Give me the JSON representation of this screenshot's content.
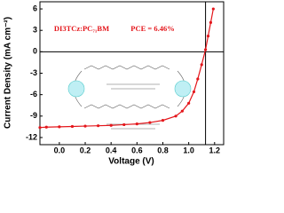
{
  "chart_data": {
    "type": "line",
    "annotations": [
      "DI3TCz:PC₇₁BM",
      "PCE = 6.46%"
    ],
    "x_label": "Voltage (V)",
    "y_label": "Current Density (mA cm⁻²)",
    "x": [
      -0.15,
      -0.1,
      0,
      0.1,
      0.2,
      0.3,
      0.4,
      0.5,
      0.6,
      0.7,
      0.8,
      0.9,
      0.95,
      1.0,
      1.04,
      1.07,
      1.1,
      1.13,
      1.15,
      1.17,
      1.19
    ],
    "series": [
      {
        "color": "#e4161b",
        "values": [
          -10.6,
          -10.55,
          -10.5,
          -10.45,
          -10.4,
          -10.35,
          -10.3,
          -10.2,
          -10.1,
          -9.9,
          -9.6,
          -9.0,
          -8.3,
          -7.2,
          -5.6,
          -3.8,
          -1.8,
          0.3,
          2.2,
          4.1,
          6.0
        ]
      }
    ],
    "xlim": [
      -0.15,
      1.27
    ],
    "ylim": [
      -13,
      7
    ],
    "xticks": [
      {
        "value": 0,
        "label": "0.0"
      },
      0.2,
      0.4,
      0.6,
      0.8,
      {
        "value": 1,
        "label": "1.0"
      },
      1.2
    ],
    "yticks": [
      -12,
      -9,
      -6,
      -3,
      0,
      3,
      6
    ]
  }
}
